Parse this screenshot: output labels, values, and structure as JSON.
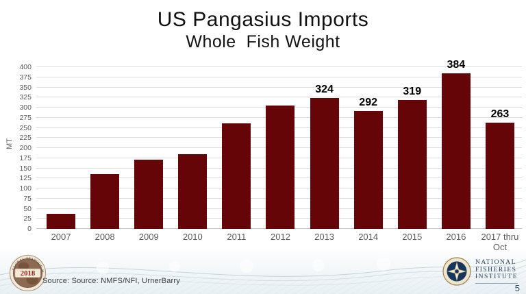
{
  "slide": {
    "title": "US Pangasius Imports",
    "subtitle": "Whole  Fish Weight",
    "page_number": "5"
  },
  "footer": {
    "source_text": "Source: Source: NMFS/NFI, UrnerBarry",
    "left_logo": {
      "year": "2018",
      "ring_text": "GLOBAL SEAFOOD MARKET CONFERENCE"
    },
    "right_logo": {
      "lines": [
        "NATIONAL",
        "FISHERIES",
        "INSTITUTE"
      ]
    }
  },
  "chart_data": {
    "type": "bar",
    "title": "US Pangasius Imports",
    "subtitle": "Whole  Fish Weight",
    "xlabel": "",
    "ylabel": "MT",
    "ylim": [
      0,
      400
    ],
    "ytick_step": 25,
    "grid": true,
    "legend_position": "none",
    "categories": [
      "2007",
      "2008",
      "2009",
      "2010",
      "2011",
      "2012",
      "2013",
      "2014",
      "2015",
      "2016",
      "2017 thru Oct"
    ],
    "values": [
      38,
      135,
      171,
      185,
      261,
      305,
      324,
      292,
      319,
      384,
      263
    ],
    "data_labels": [
      "",
      "",
      "",
      "",
      "",
      "",
      "324",
      "292",
      "319",
      "384",
      "263"
    ],
    "colors": {
      "bar": "#660508",
      "grid": "#dddddd",
      "axis_text": "#595959",
      "data_label_text": "#000000"
    }
  }
}
